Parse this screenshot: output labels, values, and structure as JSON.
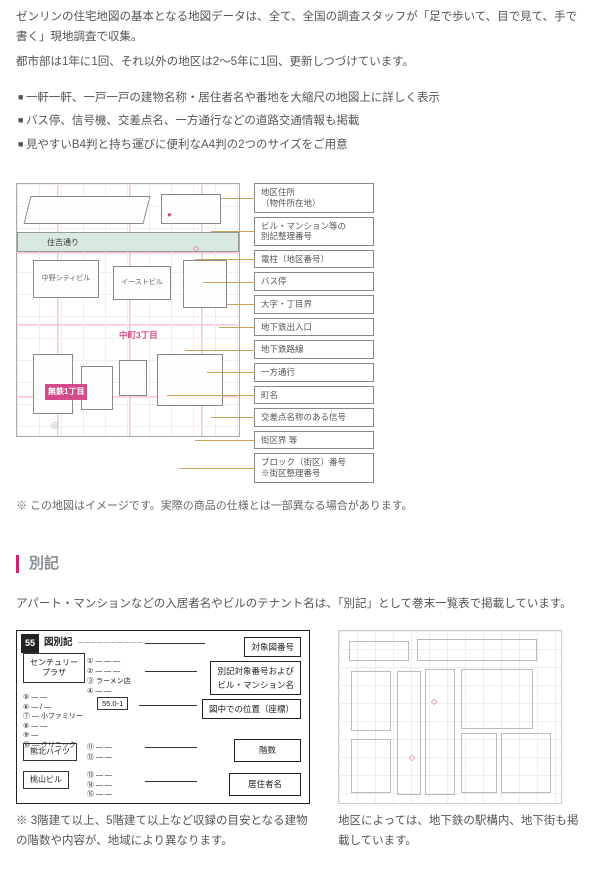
{
  "intro1": "ゼンリンの住宅地図の基本となる地図データは、全て、全国の調査スタッフが「足で歩いて、目で見て、手で書く」現地調査で収集。",
  "intro2": "都市部は1年に1回、それ以外の地区は2～5年に1回、更新しつづけています。",
  "features": [
    "一軒一軒、一戸一戸の建物名称・居住者名や番地を大縮尺の地図上に詳しく表示",
    "バス停、信号機、交差点名、一方通行などの道路交通情報も掲載",
    "見やすいB4判と持ち運びに便利なA4判の2つのサイズをご用意"
  ],
  "map": {
    "road_label": "住吉通り",
    "bldgs": {
      "a": "中野シティビル",
      "b": "イーストビル"
    },
    "text1": "中町3丁目",
    "text2": "無鉄1丁目",
    "footer_note": "※ この地図はイメージです。実際の商品の仕様とは一部異なる場合があります。",
    "legend": [
      "地区住所\n（物件所在地）",
      "ビル・マンション等の\n別記整理番号",
      "電柱（地区番号）",
      "バス停",
      "大字・丁目界",
      "地下鉄出入口",
      "地下鉄路線",
      "一方通行",
      "町名",
      "交差点名称のある信号",
      "街区界 等",
      "ブロック（街区）番号\n※街区整理番号"
    ]
  },
  "section2": {
    "title": "別記",
    "desc": "アパート・マンションなどの入居者名やビルのテナント名は、「別記」として巻末一覧表で掲載しています。",
    "besshi": {
      "badge": "55",
      "heading": "図別記",
      "left_blocks": {
        "a": "センチュリー\nプラザ",
        "b": "熊北ハイツ",
        "c": "桃山ビル"
      },
      "labels": {
        "r1": "対象図番号",
        "r2": "別記対象番号および\nビル・マンション名",
        "r3": "図中での位置（座標）",
        "r4": "階数",
        "r5": "居住者名"
      },
      "note": "※ 3階建て以上、5階建て以上など収録の目安となる建物の階数や内容が、地域により異なります。"
    },
    "subway_note": "地区によっては、地下鉄の駅構内、地下街も掲載しています。"
  },
  "colors": {
    "accent": "#d61f6c",
    "pink": "#d44a8a",
    "leader": "#c7a25a"
  }
}
